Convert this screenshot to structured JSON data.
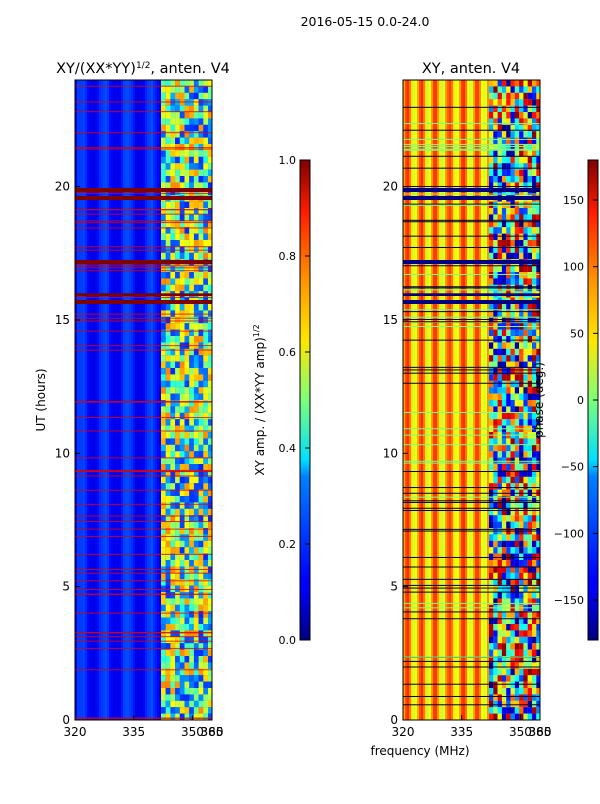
{
  "figure": {
    "suptitle": "2016-05-15 0.0-24.0"
  },
  "colors": {
    "band_left": "#7f0000",
    "band_right": "#000080",
    "axis": "#000000"
  },
  "chart_data": [
    {
      "type": "heatmap",
      "title_main": "XY/(XX*YY)",
      "title_exp": "1/2",
      "title_tail": ", anten. V4",
      "ylabel": "UT (hours)",
      "xlabel": "",
      "x_ticks": [
        "320",
        "335",
        "350",
        "365",
        "380"
      ],
      "x_tick_values": [
        320,
        335,
        350,
        365,
        380
      ],
      "y_ticks": [
        "0",
        "5",
        "10",
        "15",
        "20"
      ],
      "y_tick_values": [
        0,
        5,
        10,
        15,
        20
      ],
      "xlim": [
        320,
        355
      ],
      "ylim": [
        0,
        24
      ],
      "colormap": "jet",
      "colorbar": {
        "label_main": "XY amp. / (XX*YY amp)",
        "label_exp": "1/2",
        "range": [
          0.0,
          1.0
        ],
        "ticks": [
          "0.0",
          "0.2",
          "0.4",
          "0.6",
          "0.8",
          "1.0"
        ],
        "tick_values": [
          0.0,
          0.2,
          0.4,
          0.6,
          0.8,
          1.0
        ]
      },
      "bands_hours": [
        15.6,
        15.75,
        15.9,
        16.0,
        17.1,
        17.25,
        19.5,
        19.65,
        19.8,
        19.95
      ]
    },
    {
      "type": "heatmap",
      "title": "XY, anten. V4",
      "xlabel": "frequency (MHz)",
      "ylabel": "",
      "x_ticks": [
        "320",
        "335",
        "350",
        "365",
        "380"
      ],
      "x_tick_values": [
        320,
        335,
        350,
        365,
        380
      ],
      "y_ticks": [
        "0",
        "5",
        "10",
        "15",
        "20"
      ],
      "y_tick_values": [
        0,
        5,
        10,
        15,
        20
      ],
      "xlim": [
        320,
        355
      ],
      "ylim": [
        0,
        24
      ],
      "colormap": "jet",
      "colorbar": {
        "label": "phase (deg.)",
        "range": [
          -180,
          180
        ],
        "ticks": [
          "−150",
          "−100",
          "−50",
          "0",
          "50",
          "100",
          "150"
        ],
        "tick_values": [
          -150,
          -100,
          -50,
          0,
          50,
          100,
          150
        ]
      },
      "bands_hours": [
        15.6,
        15.75,
        15.9,
        16.0,
        17.1,
        17.25,
        19.5,
        19.65,
        19.8,
        19.95
      ]
    }
  ]
}
